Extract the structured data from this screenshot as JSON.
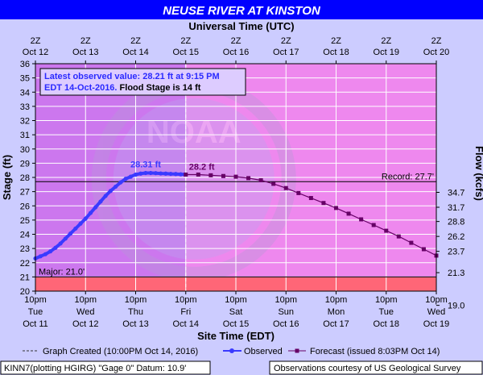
{
  "chart_data": {
    "type": "line",
    "title": "NEUSE RIVER AT KINSTON",
    "top_axis_title": "Universal Time (UTC)",
    "xlabel": "Site Time (EDT)",
    "ylabel": "Stage (ft)",
    "y2label": "Flow (kcfs)",
    "ylim": [
      20,
      36
    ],
    "yticks": [
      20,
      21,
      22,
      23,
      24,
      25,
      26,
      27,
      28,
      29,
      30,
      31,
      32,
      33,
      34,
      35,
      36
    ],
    "xlim": [
      "Oct 11 22:00",
      "Oct 19 22:00"
    ],
    "top_ticks": [
      {
        "l1": "2Z",
        "l2": "Oct 12"
      },
      {
        "l1": "2Z",
        "l2": "Oct 13"
      },
      {
        "l1": "2Z",
        "l2": "Oct 14"
      },
      {
        "l1": "2Z",
        "l2": "Oct 15"
      },
      {
        "l1": "2Z",
        "l2": "Oct 16"
      },
      {
        "l1": "2Z",
        "l2": "Oct 17"
      },
      {
        "l1": "2Z",
        "l2": "Oct 18"
      },
      {
        "l1": "2Z",
        "l2": "Oct 19"
      },
      {
        "l1": "2Z",
        "l2": "Oct 20"
      }
    ],
    "bottom_ticks": [
      {
        "l1": "10pm",
        "l2": "Tue",
        "l3": "Oct 11"
      },
      {
        "l1": "10pm",
        "l2": "Wed",
        "l3": "Oct 12"
      },
      {
        "l1": "10pm",
        "l2": "Thu",
        "l3": "Oct 13"
      },
      {
        "l1": "10pm",
        "l2": "Fri",
        "l3": "Oct 14"
      },
      {
        "l1": "10pm",
        "l2": "Sat",
        "l3": "Oct 15"
      },
      {
        "l1": "10pm",
        "l2": "Sun",
        "l3": "Oct 16"
      },
      {
        "l1": "10pm",
        "l2": "Mon",
        "l3": "Oct 17"
      },
      {
        "l1": "10pm",
        "l2": "Tue",
        "l3": "Oct 18"
      },
      {
        "l1": "10pm",
        "l2": "Wed",
        "l3": "Oct 19"
      }
    ],
    "flow_ticks": [
      {
        "stage": 21.3,
        "label": "21.3"
      },
      {
        "stage": 19.0,
        "label": "19.0"
      },
      {
        "stage": 22.8,
        "label": "23.7"
      },
      {
        "stage": 23.85,
        "label": "26.2"
      },
      {
        "stage": 24.9,
        "label": "28.8"
      },
      {
        "stage": 25.9,
        "label": "31.7"
      },
      {
        "stage": 26.95,
        "label": "34.7"
      }
    ],
    "record": {
      "value": 27.7,
      "label": "Record: 27.7'"
    },
    "major": {
      "value": 21.0,
      "label": "Major: 21.0'"
    },
    "annotation_lines": [
      {
        "text": "Latest observed value: 28.21 ft at 9:15 PM",
        "color": "#2a2aff"
      },
      {
        "text": "EDT 14-Oct-2016.",
        "color": "#2a2aff",
        "suffix": " Flood Stage is 14 ft",
        "suffix_color": "#000000"
      }
    ],
    "observed_peak_label": "28.31 ft",
    "forecast_peak_label": "28.2 ft",
    "graph_created_day": 3.0,
    "series": [
      {
        "name": "Observed",
        "color": "#3a3aff",
        "x": [
          0.0,
          0.1,
          0.2,
          0.3,
          0.4,
          0.5,
          0.6,
          0.7,
          0.8,
          0.9,
          1.0,
          1.1,
          1.2,
          1.3,
          1.4,
          1.5,
          1.6,
          1.7,
          1.8,
          1.9,
          2.0,
          2.1,
          2.2,
          2.3,
          2.4,
          2.5,
          2.6,
          2.7,
          2.8,
          2.9,
          2.98
        ],
        "y": [
          22.3,
          22.45,
          22.6,
          22.8,
          23.05,
          23.35,
          23.7,
          24.05,
          24.4,
          24.75,
          25.1,
          25.5,
          25.9,
          26.3,
          26.7,
          27.05,
          27.35,
          27.65,
          27.9,
          28.05,
          28.2,
          28.27,
          28.31,
          28.31,
          28.3,
          28.28,
          28.27,
          28.25,
          28.24,
          28.22,
          28.21
        ]
      },
      {
        "name": "Forecast",
        "color": "#660066",
        "x": [
          3.0,
          3.25,
          3.5,
          3.75,
          4.0,
          4.25,
          4.5,
          4.75,
          5.0,
          5.25,
          5.5,
          5.75,
          6.0,
          6.25,
          6.5,
          6.75,
          7.0,
          7.25,
          7.5,
          7.75,
          8.0
        ],
        "y": [
          28.2,
          28.2,
          28.15,
          28.1,
          28.05,
          27.95,
          27.8,
          27.55,
          27.25,
          26.9,
          26.55,
          26.2,
          25.85,
          25.45,
          25.05,
          24.65,
          24.25,
          23.85,
          23.4,
          22.95,
          22.5
        ]
      }
    ],
    "legend": [
      {
        "type": "dashed",
        "label": "Graph Created (10:00PM Oct 14, 2016)"
      },
      {
        "type": "observed",
        "label": "Observed"
      },
      {
        "type": "forecast",
        "label": "Forecast (issued 8:03PM Oct 14)"
      }
    ],
    "footer_left": "KINN7(plotting HGIRG) \"Gage 0\" Datum: 10.9'",
    "footer_right": "Observations courtesy of US Geological Survey",
    "watermark": "NOAA",
    "colors": {
      "header_bg": "#0000ff",
      "header_text": "#ffffff",
      "outer_bg": "#ccccff",
      "plot_bg": "#ee88ee",
      "plot_past": "#cc77ee",
      "major_band": "#ff6677",
      "grid": "#ffffff",
      "annotation_bg": "#ddccff",
      "record_line": "#000000"
    }
  }
}
